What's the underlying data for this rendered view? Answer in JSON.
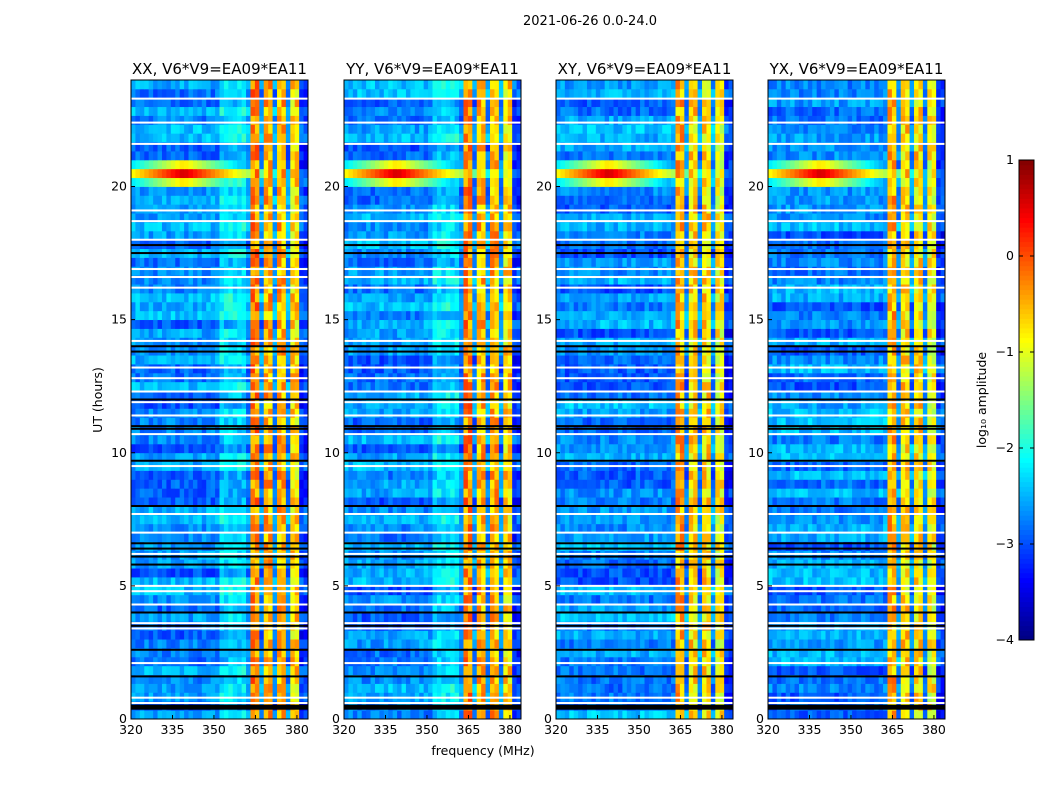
{
  "suptitle": "2021-06-26 0.0-24.0",
  "chart_data": {
    "type": "heatmap",
    "title": "2021-06-26 0.0-24.0",
    "xlabel": "frequency (MHz)",
    "ylabel": "UT (hours)",
    "xlim": [
      320,
      384
    ],
    "ylim": [
      0,
      24
    ],
    "xticks": [
      "320",
      "335",
      "350",
      "365",
      "380"
    ],
    "xtick_values": [
      320,
      335,
      350,
      365,
      380
    ],
    "yticks": [
      "0",
      "5",
      "10",
      "15",
      "20"
    ],
    "ytick_values": [
      0,
      5,
      10,
      15,
      20
    ],
    "panels": [
      {
        "title": "XX, V6*V9=EA09*EA11"
      },
      {
        "title": "YY, V6*V9=EA09*EA11"
      },
      {
        "title": "XY, V6*V9=EA09*EA11"
      },
      {
        "title": "YX, V6*V9=EA09*EA11"
      }
    ],
    "colorbar": {
      "label": "log₁₀ amplitude",
      "colormap": "jet",
      "range": [
        -4,
        1
      ],
      "ticks": [
        "1",
        "0",
        "−1",
        "−2",
        "−3",
        "−4"
      ],
      "tick_values": [
        1,
        0,
        -1,
        -2,
        -3,
        -4
      ]
    },
    "background_level": -2.7,
    "rfi_bands_MHz": [
      [
        362.5,
        366.5,
        -0.3
      ],
      [
        367.5,
        371.5,
        -0.5
      ],
      [
        372.5,
        376.5,
        -0.5
      ],
      [
        377.5,
        380.5,
        -0.7
      ]
    ],
    "burst": {
      "freq_MHz": 339,
      "time_h": 20.5,
      "level": 0.6
    },
    "flagged_white_h": [
      23.3,
      22.4,
      21.6,
      19.1,
      18.7,
      18.0,
      16.9,
      16.6,
      16.2,
      14.2,
      13.2,
      12.8,
      12.3,
      11.9,
      11.4,
      10.7,
      9.5,
      7.7,
      7.0,
      6.2,
      5.0,
      4.8,
      4.3,
      3.6,
      3.4,
      2.1,
      0.8,
      0.6,
      0.4
    ],
    "flagged_black_h": [
      17.8,
      17.5,
      14.0,
      13.8,
      12.0,
      11.0,
      10.9,
      9.7,
      8.0,
      6.6,
      6.4,
      6.1,
      5.8,
      4.0,
      3.5,
      2.6,
      1.6,
      0.5
    ]
  }
}
